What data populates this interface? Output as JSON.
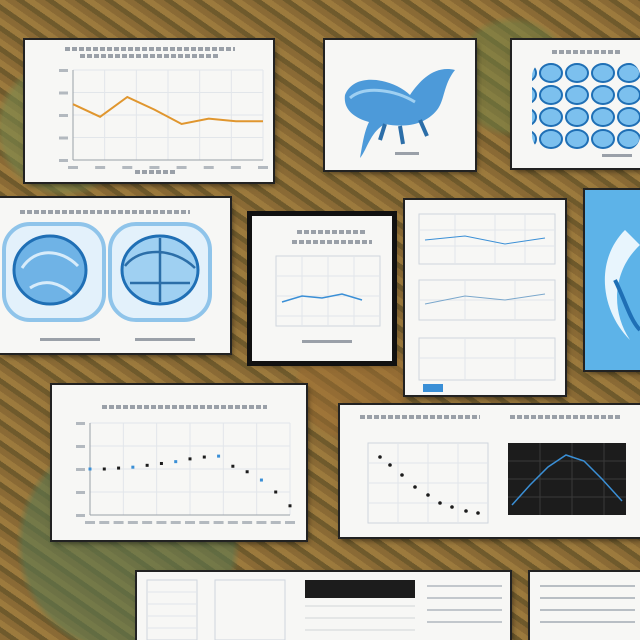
{
  "theme": {
    "accent_blue": "#3a8fd6",
    "light_blue": "#9fd0f2",
    "line_orange": "#e0962e",
    "frame_dark": "#222222",
    "grid_gray": "#cfd6dd"
  },
  "panels": [
    {
      "name": "line-chart-panel",
      "content": "line-chart"
    },
    {
      "name": "blue-creature-panel",
      "content": "illustration"
    },
    {
      "name": "blue-cells-panel",
      "content": "illustration"
    },
    {
      "name": "brain-scans-panel",
      "content": "illustration"
    },
    {
      "name": "small-plot-panel",
      "content": "chart"
    },
    {
      "name": "stacked-plots-panel",
      "content": "chart"
    },
    {
      "name": "blue-wave-panel",
      "content": "illustration"
    },
    {
      "name": "scatter-chart-panel",
      "content": "scatter-chart"
    },
    {
      "name": "dual-chart-panel",
      "content": "chart"
    },
    {
      "name": "bottom-table-panel",
      "content": "table"
    },
    {
      "name": "bottom-right-panel",
      "content": "table"
    }
  ],
  "chart_data": [
    {
      "type": "line",
      "x": [
        1,
        2,
        3,
        4,
        5,
        6,
        7,
        8
      ],
      "values": [
        62,
        48,
        70,
        56,
        40,
        46,
        43,
        43
      ],
      "ylim": [
        0,
        100
      ],
      "grid": true
    },
    {
      "type": "scatter",
      "x": [
        1,
        2,
        3,
        4,
        5,
        6,
        7,
        8,
        9,
        10,
        11,
        12,
        13,
        14,
        15
      ],
      "values": [
        50,
        50,
        51,
        52,
        54,
        56,
        58,
        61,
        63,
        64,
        53,
        47,
        38,
        25,
        10
      ],
      "ylim": [
        0,
        100
      ],
      "grid": true
    }
  ]
}
